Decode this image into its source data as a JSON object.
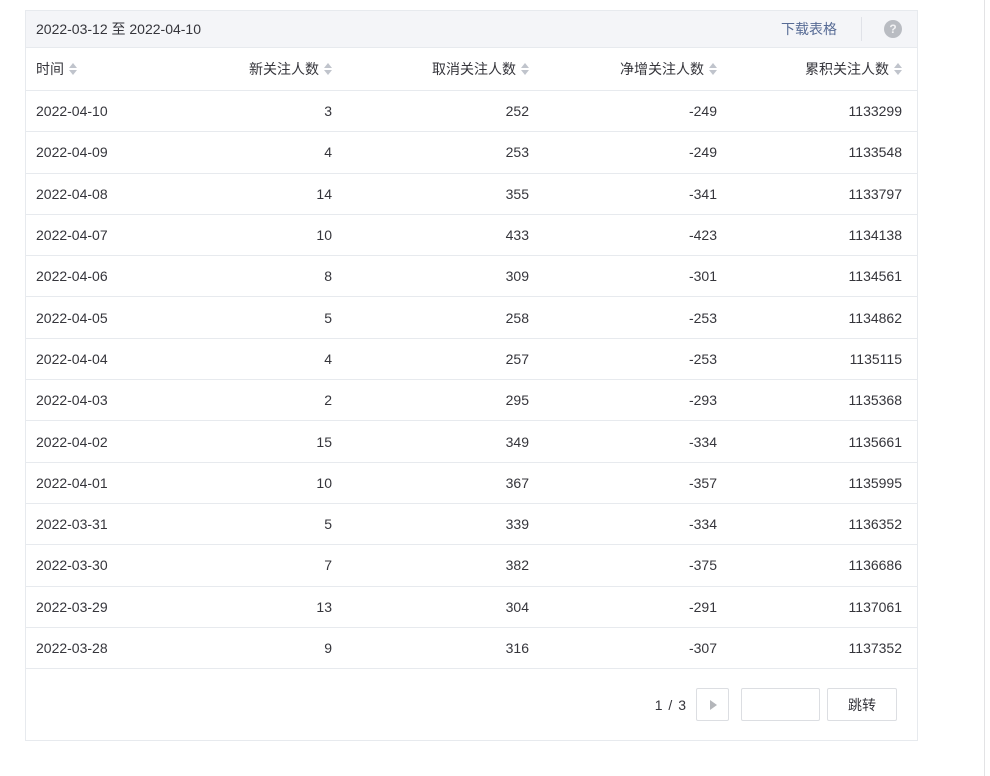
{
  "header": {
    "date_range": "2022-03-12 至 2022-04-10",
    "download_label": "下载表格",
    "help_glyph": "?"
  },
  "table": {
    "columns": [
      {
        "label": "时间",
        "sortable": true
      },
      {
        "label": "新关注人数",
        "sortable": true
      },
      {
        "label": "取消关注人数",
        "sortable": true
      },
      {
        "label": "净增关注人数",
        "sortable": true
      },
      {
        "label": "累积关注人数",
        "sortable": true
      }
    ],
    "rows": [
      [
        "2022-04-10",
        "3",
        "252",
        "-249",
        "1133299"
      ],
      [
        "2022-04-09",
        "4",
        "253",
        "-249",
        "1133548"
      ],
      [
        "2022-04-08",
        "14",
        "355",
        "-341",
        "1133797"
      ],
      [
        "2022-04-07",
        "10",
        "433",
        "-423",
        "1134138"
      ],
      [
        "2022-04-06",
        "8",
        "309",
        "-301",
        "1134561"
      ],
      [
        "2022-04-05",
        "5",
        "258",
        "-253",
        "1134862"
      ],
      [
        "2022-04-04",
        "4",
        "257",
        "-253",
        "1135115"
      ],
      [
        "2022-04-03",
        "2",
        "295",
        "-293",
        "1135368"
      ],
      [
        "2022-04-02",
        "15",
        "349",
        "-334",
        "1135661"
      ],
      [
        "2022-04-01",
        "10",
        "367",
        "-357",
        "1135995"
      ],
      [
        "2022-03-31",
        "5",
        "339",
        "-334",
        "1136352"
      ],
      [
        "2022-03-30",
        "7",
        "382",
        "-375",
        "1136686"
      ],
      [
        "2022-03-29",
        "13",
        "304",
        "-291",
        "1137061"
      ],
      [
        "2022-03-28",
        "9",
        "316",
        "-307",
        "1137352"
      ]
    ]
  },
  "pagination": {
    "current_page": 1,
    "total_pages": 3,
    "page_indicator": "1 / 3",
    "jump_input_value": "",
    "jump_label": "跳转"
  },
  "colors": {
    "link": "#576b95",
    "bar_bg": "#f4f5f8",
    "border": "#e7eaee",
    "text": "#35353b",
    "sort_icon": "#c0c4cc",
    "icon_gray": "#b4b6ba",
    "help_bg": "#b9bcc2"
  }
}
